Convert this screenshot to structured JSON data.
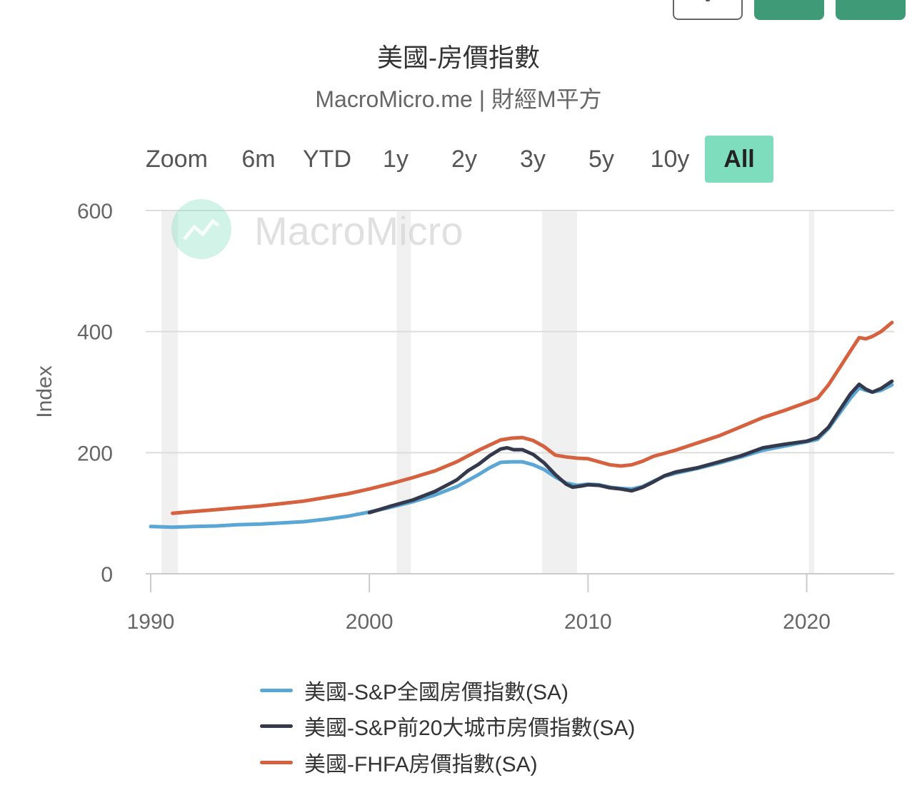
{
  "chart_data": {
    "type": "line",
    "title": "美國-房價指數",
    "subtitle": "MacroMicro.me | 財經M平方",
    "watermark": "MacroMicro",
    "ylabel": "Index",
    "xlabel": "",
    "xlim": [
      1990,
      2024
    ],
    "ylim": [
      0,
      600
    ],
    "y_ticks": [
      0,
      200,
      400,
      600
    ],
    "x_ticks": [
      1990,
      2000,
      2010,
      2020
    ],
    "grid": true,
    "legend_position": "bottom",
    "recession_bands": [
      [
        1990.5,
        1991.25
      ],
      [
        2001.25,
        2001.9
      ],
      [
        2007.9,
        2009.5
      ],
      [
        2020.1,
        2020.35
      ]
    ],
    "series": [
      {
        "name": "美國-S&P全國房價指數(SA)",
        "color": "#5aa7d6",
        "points": [
          [
            1990,
            78
          ],
          [
            1991,
            77
          ],
          [
            1992,
            78
          ],
          [
            1993,
            79
          ],
          [
            1994,
            81
          ],
          [
            1995,
            82
          ],
          [
            1996,
            84
          ],
          [
            1997,
            86
          ],
          [
            1998,
            90
          ],
          [
            1999,
            95
          ],
          [
            2000,
            102
          ],
          [
            2001,
            110
          ],
          [
            2002,
            119
          ],
          [
            2003,
            130
          ],
          [
            2004,
            144
          ],
          [
            2005,
            164
          ],
          [
            2005.5,
            175
          ],
          [
            2006,
            184
          ],
          [
            2006.5,
            185
          ],
          [
            2007,
            185
          ],
          [
            2007.5,
            180
          ],
          [
            2008,
            172
          ],
          [
            2008.5,
            160
          ],
          [
            2009,
            150
          ],
          [
            2009.5,
            146
          ],
          [
            2010,
            148
          ],
          [
            2010.5,
            147
          ],
          [
            2011,
            143
          ],
          [
            2011.5,
            141
          ],
          [
            2012,
            140
          ],
          [
            2012.5,
            144
          ],
          [
            2013,
            153
          ],
          [
            2013.5,
            161
          ],
          [
            2014,
            166
          ],
          [
            2015,
            174
          ],
          [
            2016,
            183
          ],
          [
            2017,
            193
          ],
          [
            2018,
            204
          ],
          [
            2019,
            211
          ],
          [
            2020,
            218
          ],
          [
            2020.5,
            222
          ],
          [
            2021,
            240
          ],
          [
            2021.5,
            265
          ],
          [
            2022,
            290
          ],
          [
            2022.4,
            307
          ],
          [
            2022.7,
            303
          ],
          [
            2023,
            300
          ],
          [
            2023.4,
            303
          ],
          [
            2023.9,
            312
          ]
        ]
      },
      {
        "name": "美國-S&P前20大城市房價指數(SA)",
        "color": "#343a4c",
        "points": [
          [
            2000,
            101
          ],
          [
            2001,
            112
          ],
          [
            2002,
            122
          ],
          [
            2003,
            136
          ],
          [
            2004,
            155
          ],
          [
            2004.5,
            170
          ],
          [
            2005,
            181
          ],
          [
            2005.5,
            195
          ],
          [
            2006,
            206
          ],
          [
            2006.3,
            208
          ],
          [
            2006.6,
            205
          ],
          [
            2007,
            205
          ],
          [
            2007.5,
            197
          ],
          [
            2008,
            183
          ],
          [
            2008.5,
            164
          ],
          [
            2009,
            148
          ],
          [
            2009.3,
            143
          ],
          [
            2009.7,
            145
          ],
          [
            2010,
            147
          ],
          [
            2010.5,
            146
          ],
          [
            2011,
            142
          ],
          [
            2011.5,
            140
          ],
          [
            2012,
            137
          ],
          [
            2012.5,
            143
          ],
          [
            2013,
            152
          ],
          [
            2013.5,
            162
          ],
          [
            2014,
            168
          ],
          [
            2015,
            175
          ],
          [
            2016,
            185
          ],
          [
            2017,
            195
          ],
          [
            2018,
            208
          ],
          [
            2019,
            214
          ],
          [
            2020,
            219
          ],
          [
            2020.5,
            225
          ],
          [
            2021,
            242
          ],
          [
            2021.5,
            270
          ],
          [
            2022,
            297
          ],
          [
            2022.4,
            313
          ],
          [
            2022.7,
            305
          ],
          [
            2023,
            300
          ],
          [
            2023.4,
            306
          ],
          [
            2023.9,
            318
          ]
        ]
      },
      {
        "name": "美國-FHFA房價指數(SA)",
        "color": "#d6613f",
        "points": [
          [
            1991,
            100
          ],
          [
            1992,
            103
          ],
          [
            1993,
            106
          ],
          [
            1994,
            109
          ],
          [
            1995,
            112
          ],
          [
            1996,
            116
          ],
          [
            1997,
            120
          ],
          [
            1998,
            126
          ],
          [
            1999,
            132
          ],
          [
            2000,
            140
          ],
          [
            2001,
            149
          ],
          [
            2002,
            159
          ],
          [
            2003,
            170
          ],
          [
            2004,
            185
          ],
          [
            2005,
            204
          ],
          [
            2006,
            221
          ],
          [
            2006.5,
            224
          ],
          [
            2007,
            225
          ],
          [
            2007.5,
            220
          ],
          [
            2008,
            210
          ],
          [
            2008.5,
            196
          ],
          [
            2009,
            193
          ],
          [
            2009.5,
            191
          ],
          [
            2010,
            190
          ],
          [
            2010.5,
            185
          ],
          [
            2011,
            180
          ],
          [
            2011.5,
            178
          ],
          [
            2012,
            180
          ],
          [
            2012.5,
            186
          ],
          [
            2013,
            194
          ],
          [
            2014,
            204
          ],
          [
            2015,
            216
          ],
          [
            2016,
            228
          ],
          [
            2017,
            243
          ],
          [
            2018,
            258
          ],
          [
            2019,
            270
          ],
          [
            2020,
            283
          ],
          [
            2020.5,
            290
          ],
          [
            2021,
            312
          ],
          [
            2021.5,
            340
          ],
          [
            2022,
            368
          ],
          [
            2022.4,
            390
          ],
          [
            2022.7,
            388
          ],
          [
            2023,
            392
          ],
          [
            2023.4,
            400
          ],
          [
            2023.9,
            415
          ]
        ]
      }
    ]
  },
  "zoom": {
    "label": "Zoom",
    "buttons": [
      {
        "label": "6m",
        "active": false
      },
      {
        "label": "YTD",
        "active": false
      },
      {
        "label": "1y",
        "active": false
      },
      {
        "label": "2y",
        "active": false
      },
      {
        "label": "3y",
        "active": false
      },
      {
        "label": "5y",
        "active": false
      },
      {
        "label": "10y",
        "active": false
      },
      {
        "label": "All",
        "active": true
      }
    ]
  },
  "colors": {
    "grid": "#dddddd",
    "recession": "#f0f0f0",
    "zoom_active": "#7dddbd",
    "brand_green": "#3f9a78"
  }
}
